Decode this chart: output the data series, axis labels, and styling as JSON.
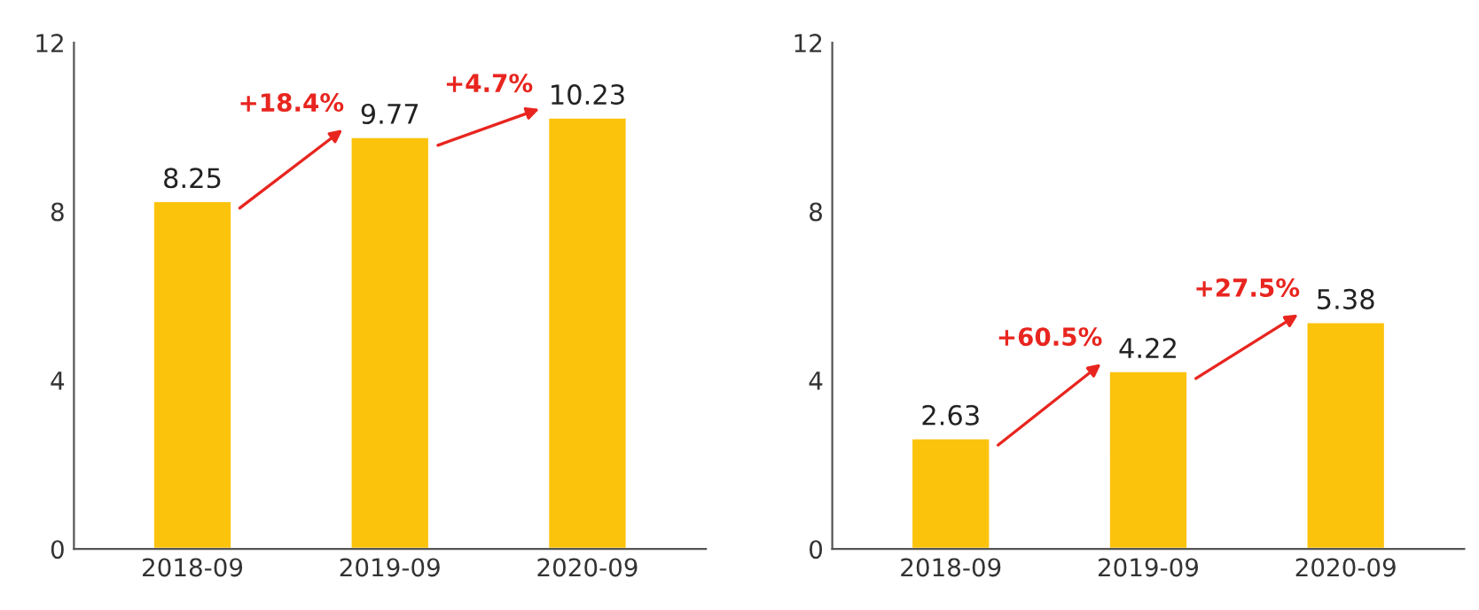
{
  "chart_data": [
    {
      "type": "bar",
      "categories": [
        "2018-09",
        "2019-09",
        "2020-09"
      ],
      "values": [
        8.25,
        9.77,
        10.23
      ],
      "color": "#fcc30c",
      "ylim": [
        0,
        12
      ],
      "yticks": [
        0,
        4,
        8,
        12
      ],
      "data_labels": true,
      "grid": false,
      "annotations": [
        "+18.4%",
        "+4.7%"
      ]
    },
    {
      "type": "bar",
      "categories": [
        "2018-09",
        "2019-09",
        "2020-09"
      ],
      "values": [
        2.63,
        4.22,
        5.38
      ],
      "color": "#fcc30c",
      "ylim": [
        0,
        12
      ],
      "yticks": [
        0,
        4,
        8,
        12
      ],
      "data_labels": true,
      "grid": false,
      "annotations": [
        "+60.5%",
        "+27.5%"
      ]
    }
  ]
}
